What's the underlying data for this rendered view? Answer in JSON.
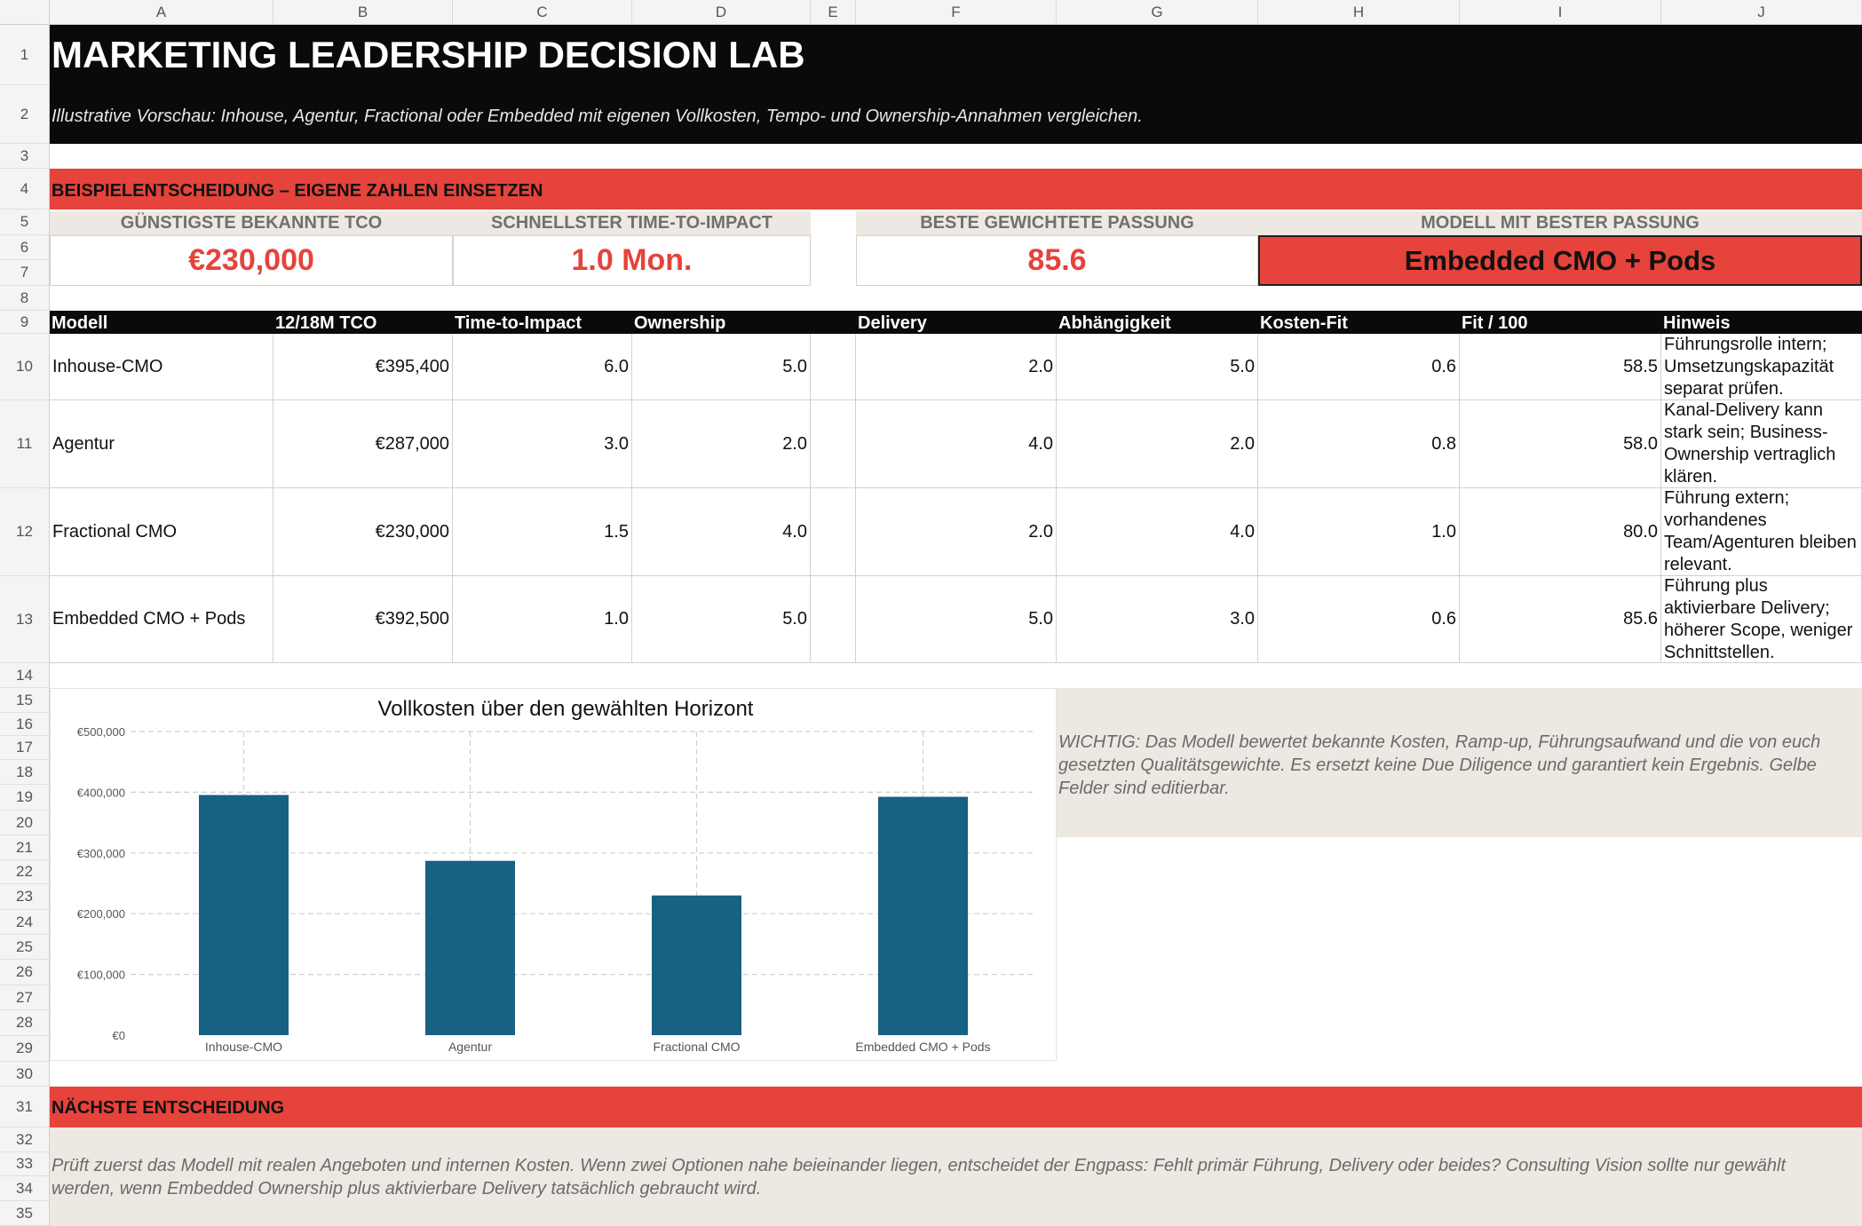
{
  "columns": [
    "A",
    "B",
    "C",
    "D",
    "E",
    "F",
    "G",
    "H",
    "I",
    "J"
  ],
  "rows": [
    "1",
    "2",
    "3",
    "4",
    "5",
    "6",
    "7",
    "8",
    "9",
    "10",
    "11",
    "12",
    "13",
    "14",
    "15",
    "16",
    "17",
    "18",
    "19",
    "20",
    "21",
    "22",
    "23",
    "24",
    "25",
    "26",
    "27",
    "28",
    "29",
    "30",
    "31",
    "32",
    "33",
    "34",
    "35"
  ],
  "title": "MARKETING LEADERSHIP DECISION LAB",
  "subtitle": "Illustrative Vorschau: Inhouse, Agentur, Fractional oder Embedded mit eigenen Vollkosten, Tempo- und Ownership-Annahmen vergleichen.",
  "section_example": "BEISPIELENTSCHEIDUNG – EIGENE ZAHLEN EINSETZEN",
  "kpis": {
    "tco_label": "GÜNSTIGSTE BEKANNTE TCO",
    "tco_value": "€230,000",
    "tti_label": "SCHNELLSTER TIME-TO-IMPACT",
    "tti_value": "1.0 Mon.",
    "fit_label": "BESTE GEWICHTETE PASSUNG",
    "fit_value": "85.6",
    "best_label": "MODELL MIT BESTER PASSUNG",
    "best_value": "Embedded CMO + Pods"
  },
  "table": {
    "headers": [
      "Modell",
      "12/18M TCO",
      "Time-to-Impact",
      "Ownership",
      "Delivery",
      "Abhängigkeit",
      "Kosten-Fit",
      "Fit / 100",
      "Hinweis"
    ],
    "rows": [
      {
        "modell": "Inhouse-CMO",
        "tco": "€395,400",
        "tti": "6.0",
        "own": "5.0",
        "del": "2.0",
        "dep": "5.0",
        "cost": "0.6",
        "fit": "58.5",
        "note": "Führungsrolle intern; Umsetzungskapazität separat prüfen."
      },
      {
        "modell": "Agentur",
        "tco": "€287,000",
        "tti": "3.0",
        "own": "2.0",
        "del": "4.0",
        "dep": "2.0",
        "cost": "0.8",
        "fit": "58.0",
        "note": "Kanal-Delivery kann stark sein; Business-Ownership vertraglich klären."
      },
      {
        "modell": "Fractional CMO",
        "tco": "€230,000",
        "tti": "1.5",
        "own": "4.0",
        "del": "2.0",
        "dep": "4.0",
        "cost": "1.0",
        "fit": "80.0",
        "note": "Führung extern; vorhandenes Team/Agenturen bleiben relevant."
      },
      {
        "modell": "Embedded CMO + Pods",
        "tco": "€392,500",
        "tti": "1.0",
        "own": "5.0",
        "del": "5.0",
        "dep": "3.0",
        "cost": "0.6",
        "fit": "85.6",
        "note": "Führung plus aktivierbare Delivery; höherer Scope, weniger Schnittstellen."
      }
    ]
  },
  "chart_data": {
    "type": "bar",
    "title": "Vollkosten über den gewählten Horizont",
    "categories": [
      "Inhouse-CMO",
      "Agentur",
      "Fractional CMO",
      "Embedded CMO + Pods"
    ],
    "values": [
      395400,
      287000,
      230000,
      392500
    ],
    "ylim": [
      0,
      500000
    ],
    "yticks": [
      0,
      100000,
      200000,
      300000,
      400000,
      500000
    ],
    "ytick_labels": [
      "€0",
      "€100,000",
      "€200,000",
      "€300,000",
      "€400,000",
      "€500,000"
    ],
    "grid": true,
    "bar_color": "#176182"
  },
  "warning": "WICHTIG: Das Modell bewertet bekannte Kosten, Ramp-up, Führungsaufwand und die von euch gesetzten Qualitätsgewichte. Es ersetzt keine Due Diligence und garantiert kein Ergebnis. Gelbe Felder sind editierbar.",
  "section_next": "NÄCHSTE ENTSCHEIDUNG",
  "next_text": "Prüft zuerst das Modell mit realen Angeboten und internen Kosten. Wenn zwei Optionen nahe beieinander liegen, entscheidet der Engpass: Fehlt primär Führung, Delivery oder beides? Consulting Vision sollte nur gewählt werden, wenn Embedded Ownership plus aktivierbare Delivery tatsächlich gebraucht wird.",
  "colors": {
    "accent_red": "#e5433b",
    "header_black": "#0a0a0a",
    "beige": "#ede8e2",
    "bar": "#176182"
  }
}
